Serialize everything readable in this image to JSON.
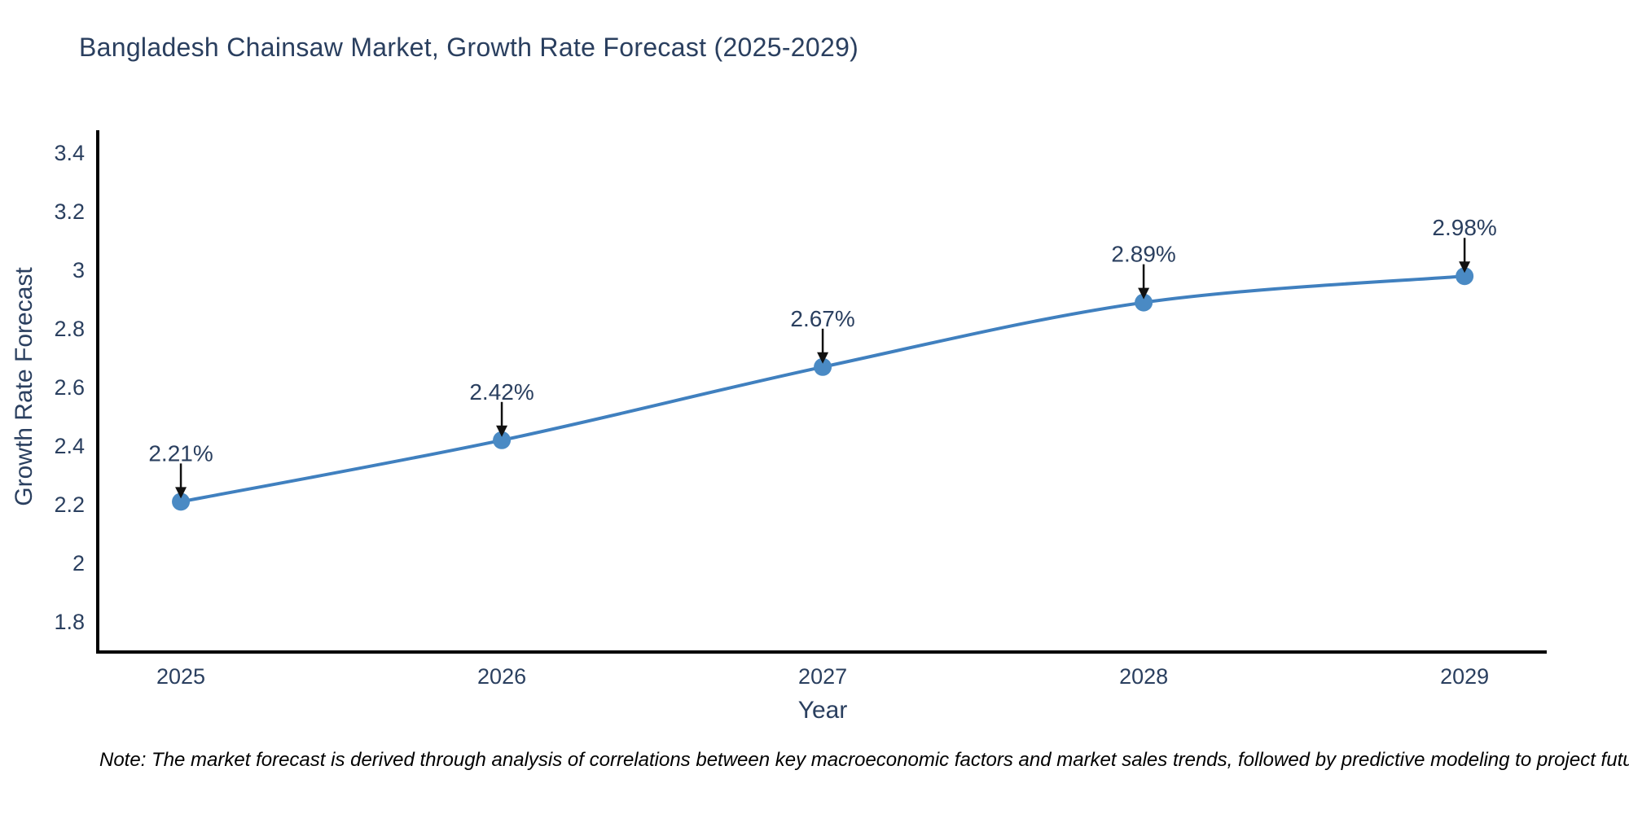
{
  "note": "Note: The market forecast is derived through analysis of correlations between key macroeconomic factors and market sales trends, followed by predictive modeling to project future sales",
  "colors": {
    "font": "#2a3f5f",
    "axis_line": "#000000",
    "line": "#4080bf",
    "marker": "#4a8ac4",
    "arrow": "#111111",
    "note_text": "#000000"
  },
  "chart_data": {
    "type": "line",
    "title": "Bangladesh Chainsaw Market, Growth Rate Forecast (2025-2029)",
    "xlabel": "Year",
    "ylabel": "Growth Rate Forecast",
    "x": [
      2025,
      2026,
      2027,
      2028,
      2029
    ],
    "series": [
      {
        "name": "Growth Rate Forecast",
        "values": [
          2.21,
          2.42,
          2.67,
          2.89,
          2.98
        ]
      }
    ],
    "point_labels": [
      "2.21%",
      "2.42%",
      "2.67%",
      "2.89%",
      "2.98%"
    ],
    "xticks": [
      "2025",
      "2026",
      "2027",
      "2028",
      "2029"
    ],
    "yticks": [
      1.8,
      2,
      2.2,
      2.4,
      2.6,
      2.8,
      3,
      3.2,
      3.4
    ],
    "xlim": [
      2024.741,
      2029.256
    ],
    "ylim": [
      1.697,
      3.478
    ],
    "grid": false,
    "legend": false,
    "line_shape": "spline",
    "marker": "circle",
    "annotations": "arrow-down-to-point"
  }
}
